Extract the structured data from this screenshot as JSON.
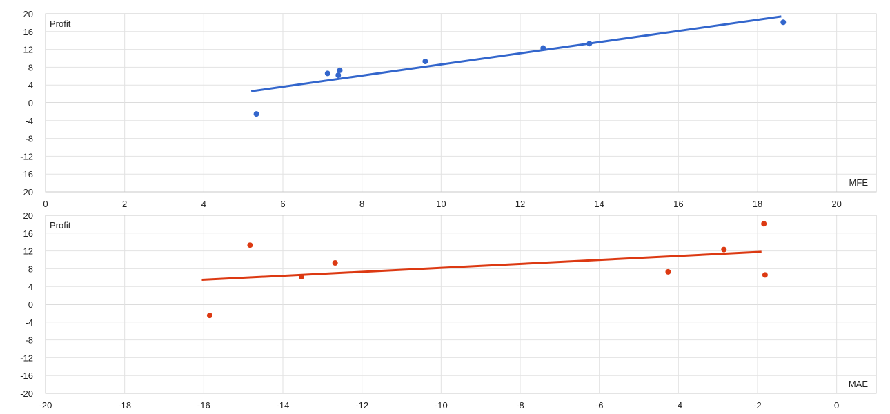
{
  "chart_data": [
    {
      "type": "scatter",
      "title": "",
      "ylabel": "Profit",
      "xlabel": "MFE",
      "xlim": [
        0,
        21
      ],
      "ylim": [
        -20,
        20
      ],
      "xticks": [
        0,
        2,
        4,
        6,
        8,
        10,
        12,
        14,
        16,
        18,
        20
      ],
      "yticks": [
        20,
        16,
        12,
        8,
        4,
        0,
        -4,
        -8,
        -12,
        -16,
        -20
      ],
      "grid": true,
      "color": "#3366cc",
      "series": [
        {
          "x": [
            5.33,
            7.13,
            7.4,
            7.44,
            9.6,
            12.58,
            13.75,
            18.65
          ],
          "y": [
            -2.5,
            6.6,
            6.2,
            7.3,
            9.3,
            12.3,
            13.3,
            18.1
          ]
        }
      ],
      "trendline": {
        "x": [
          5.2,
          18.6
        ],
        "y": [
          2.6,
          19.4
        ]
      }
    },
    {
      "type": "scatter",
      "title": "",
      "ylabel": "Profit",
      "xlabel": "MAE",
      "xlim": [
        -20,
        1
      ],
      "ylim": [
        -20,
        20
      ],
      "xticks": [
        -20,
        -18,
        -16,
        -14,
        -12,
        -10,
        -8,
        -6,
        -4,
        -2,
        0
      ],
      "yticks": [
        20,
        16,
        12,
        8,
        4,
        0,
        -4,
        -8,
        -12,
        -16,
        -20
      ],
      "grid": true,
      "color": "#dc3912",
      "series": [
        {
          "x": [
            -15.85,
            -14.83,
            -13.53,
            -12.68,
            -4.26,
            -2.85,
            -1.84,
            -1.81
          ],
          "y": [
            -2.5,
            13.3,
            6.2,
            9.3,
            7.3,
            12.3,
            18.1,
            6.6
          ]
        }
      ],
      "trendline": {
        "x": [
          -16.05,
          -1.9
        ],
        "y": [
          5.5,
          11.8
        ]
      }
    }
  ]
}
